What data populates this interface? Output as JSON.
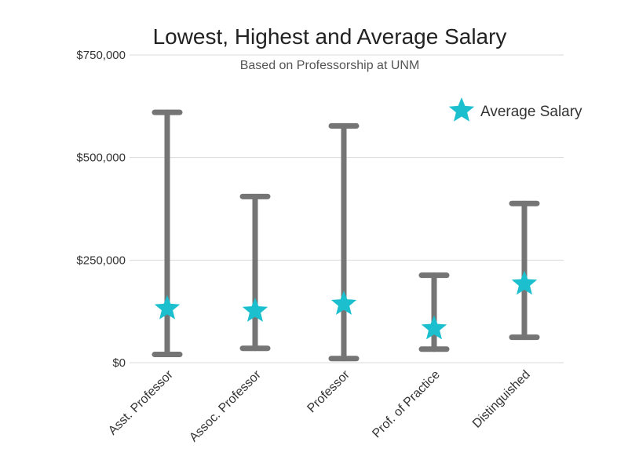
{
  "chart_data": {
    "type": "errorbar",
    "title": "Lowest, Highest and Average Salary",
    "subtitle": "Based on Professorship at UNM",
    "categories": [
      "Asst. Professor",
      "Assoc. Professor",
      "Professor",
      "Prof. of Practice",
      "Distinguished"
    ],
    "series": [
      {
        "name": "Lowest",
        "values": [
          20000,
          35000,
          10000,
          33000,
          62000
        ]
      },
      {
        "name": "Highest",
        "values": [
          610000,
          405000,
          577000,
          213000,
          388000
        ]
      },
      {
        "name": "Average Salary",
        "values": [
          132000,
          126000,
          143000,
          83000,
          192000
        ]
      }
    ],
    "ylim": [
      0,
      750000
    ],
    "yticks": [
      0,
      250000,
      500000,
      750000
    ],
    "ytick_labels": [
      "$0",
      "$250,000",
      "$500,000",
      "$750,000"
    ],
    "xlabel": "",
    "ylabel": "",
    "grid": true,
    "legend": {
      "label": "Average Salary",
      "position": "top-right"
    },
    "colors": {
      "range": "#757575",
      "average": "#1bbfcd",
      "grid": "#d9d9d9"
    }
  }
}
